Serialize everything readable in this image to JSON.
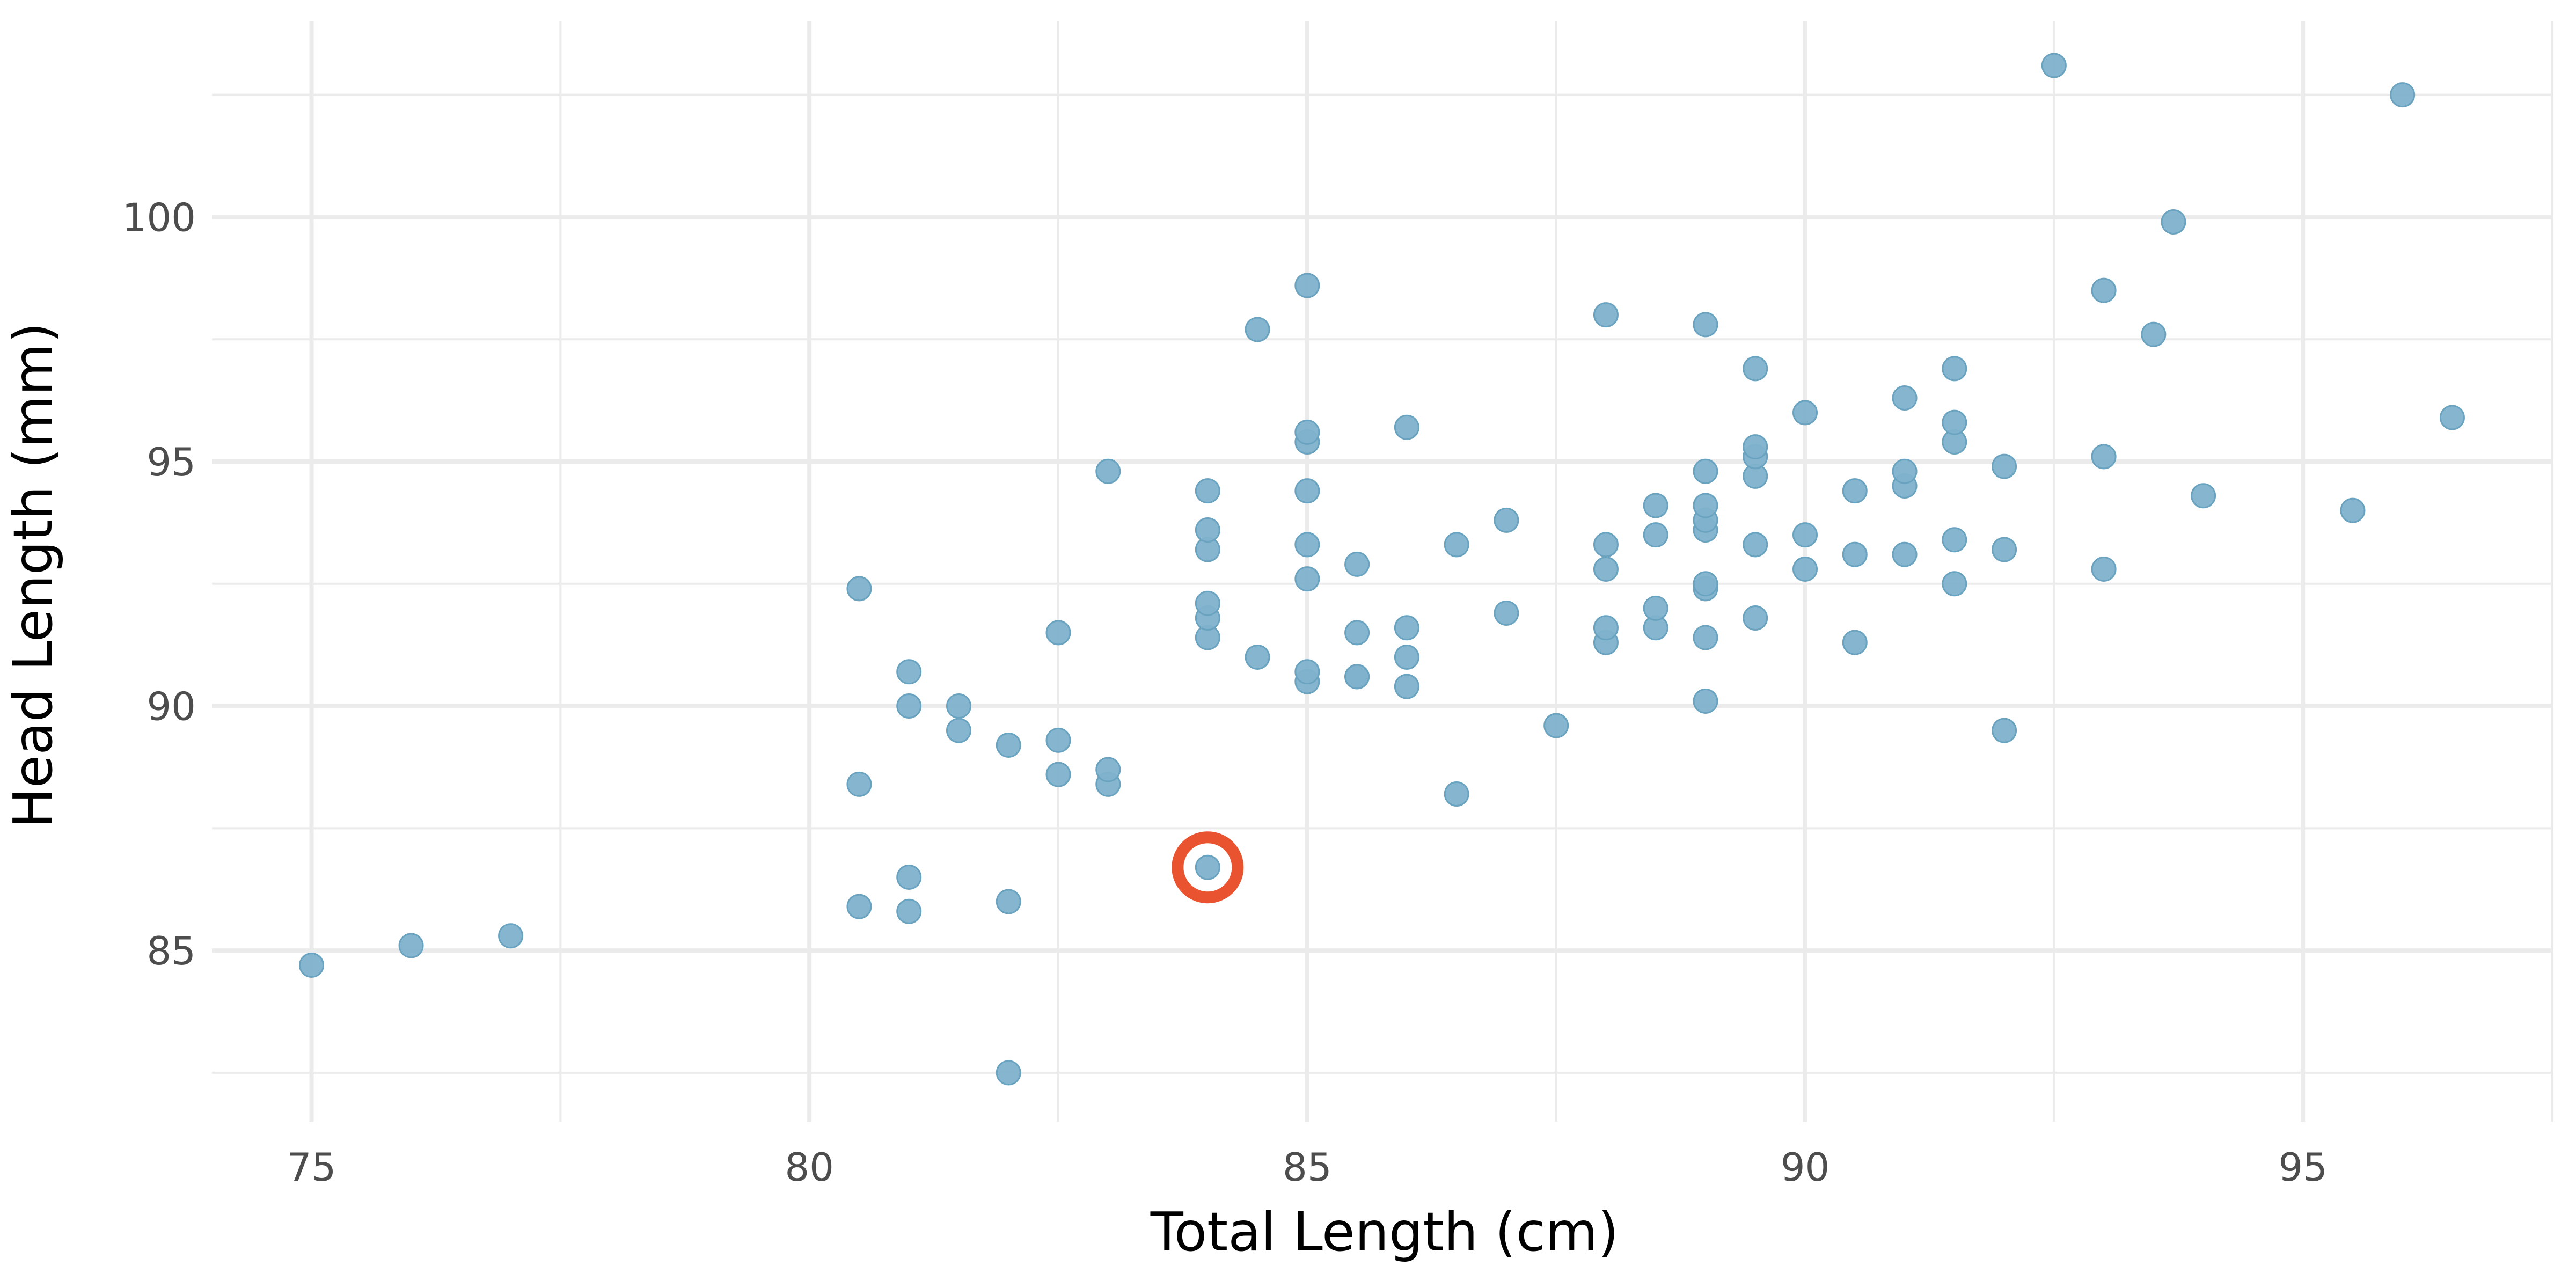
{
  "chart_data": {
    "type": "scatter",
    "title": "",
    "xlabel": "Total Length (cm)",
    "ylabel": "Head Length (mm)",
    "xlim": [
      74,
      97.5
    ],
    "ylim": [
      81.5,
      104
    ],
    "x_ticks": [
      75,
      80,
      85,
      90,
      95
    ],
    "y_ticks": [
      85,
      90,
      95,
      100
    ],
    "grid": true,
    "point_color": "#7fb2cc",
    "highlight_color": "#e9532f",
    "highlighted_point": {
      "x": 84.0,
      "y": 86.7
    },
    "points": [
      {
        "x": 75.0,
        "y": 84.7
      },
      {
        "x": 76.0,
        "y": 85.1
      },
      {
        "x": 77.0,
        "y": 85.3
      },
      {
        "x": 80.5,
        "y": 85.9
      },
      {
        "x": 80.5,
        "y": 88.4
      },
      {
        "x": 80.5,
        "y": 92.4
      },
      {
        "x": 81.0,
        "y": 85.8
      },
      {
        "x": 81.0,
        "y": 86.5
      },
      {
        "x": 81.0,
        "y": 90.0
      },
      {
        "x": 81.0,
        "y": 90.7
      },
      {
        "x": 81.5,
        "y": 89.5
      },
      {
        "x": 81.5,
        "y": 90.0
      },
      {
        "x": 82.0,
        "y": 82.5
      },
      {
        "x": 82.0,
        "y": 86.0
      },
      {
        "x": 82.0,
        "y": 89.2
      },
      {
        "x": 82.5,
        "y": 88.6
      },
      {
        "x": 82.5,
        "y": 89.3
      },
      {
        "x": 82.5,
        "y": 91.5
      },
      {
        "x": 83.0,
        "y": 88.4
      },
      {
        "x": 83.0,
        "y": 88.7
      },
      {
        "x": 83.0,
        "y": 94.8
      },
      {
        "x": 84.0,
        "y": 86.7
      },
      {
        "x": 84.0,
        "y": 91.4
      },
      {
        "x": 84.0,
        "y": 91.8
      },
      {
        "x": 84.0,
        "y": 92.1
      },
      {
        "x": 84.0,
        "y": 93.2
      },
      {
        "x": 84.0,
        "y": 93.6
      },
      {
        "x": 84.0,
        "y": 94.4
      },
      {
        "x": 84.5,
        "y": 91.0
      },
      {
        "x": 84.5,
        "y": 97.7
      },
      {
        "x": 85.0,
        "y": 90.5
      },
      {
        "x": 85.0,
        "y": 90.7
      },
      {
        "x": 85.0,
        "y": 92.6
      },
      {
        "x": 85.0,
        "y": 93.3
      },
      {
        "x": 85.0,
        "y": 94.4
      },
      {
        "x": 85.0,
        "y": 95.4
      },
      {
        "x": 85.0,
        "y": 95.6
      },
      {
        "x": 85.0,
        "y": 98.6
      },
      {
        "x": 85.5,
        "y": 90.6
      },
      {
        "x": 85.5,
        "y": 90.6
      },
      {
        "x": 85.5,
        "y": 91.5
      },
      {
        "x": 85.5,
        "y": 92.9
      },
      {
        "x": 86.0,
        "y": 90.4
      },
      {
        "x": 86.0,
        "y": 91.0
      },
      {
        "x": 86.0,
        "y": 91.6
      },
      {
        "x": 86.0,
        "y": 95.7
      },
      {
        "x": 86.5,
        "y": 88.2
      },
      {
        "x": 86.5,
        "y": 93.3
      },
      {
        "x": 87.0,
        "y": 91.9
      },
      {
        "x": 87.0,
        "y": 93.8
      },
      {
        "x": 87.5,
        "y": 89.6
      },
      {
        "x": 88.0,
        "y": 91.3
      },
      {
        "x": 88.0,
        "y": 91.6
      },
      {
        "x": 88.0,
        "y": 92.8
      },
      {
        "x": 88.0,
        "y": 93.3
      },
      {
        "x": 88.0,
        "y": 98.0
      },
      {
        "x": 88.5,
        "y": 91.6
      },
      {
        "x": 88.5,
        "y": 92.0
      },
      {
        "x": 88.5,
        "y": 93.5
      },
      {
        "x": 88.5,
        "y": 94.1
      },
      {
        "x": 89.0,
        "y": 90.1
      },
      {
        "x": 89.0,
        "y": 91.4
      },
      {
        "x": 89.0,
        "y": 92.4
      },
      {
        "x": 89.0,
        "y": 92.5
      },
      {
        "x": 89.0,
        "y": 93.6
      },
      {
        "x": 89.0,
        "y": 93.8
      },
      {
        "x": 89.0,
        "y": 94.1
      },
      {
        "x": 89.0,
        "y": 94.8
      },
      {
        "x": 89.0,
        "y": 97.8
      },
      {
        "x": 89.5,
        "y": 91.8
      },
      {
        "x": 89.5,
        "y": 93.3
      },
      {
        "x": 89.5,
        "y": 94.7
      },
      {
        "x": 89.5,
        "y": 95.1
      },
      {
        "x": 89.5,
        "y": 95.3
      },
      {
        "x": 89.5,
        "y": 96.9
      },
      {
        "x": 90.0,
        "y": 92.8
      },
      {
        "x": 90.0,
        "y": 93.5
      },
      {
        "x": 90.0,
        "y": 96.0
      },
      {
        "x": 90.5,
        "y": 91.3
      },
      {
        "x": 90.5,
        "y": 93.1
      },
      {
        "x": 90.5,
        "y": 94.4
      },
      {
        "x": 91.0,
        "y": 93.1
      },
      {
        "x": 91.0,
        "y": 94.5
      },
      {
        "x": 91.0,
        "y": 94.8
      },
      {
        "x": 91.0,
        "y": 96.3
      },
      {
        "x": 91.5,
        "y": 92.5
      },
      {
        "x": 91.5,
        "y": 93.4
      },
      {
        "x": 91.5,
        "y": 95.4
      },
      {
        "x": 91.5,
        "y": 95.8
      },
      {
        "x": 91.5,
        "y": 96.9
      },
      {
        "x": 92.0,
        "y": 89.5
      },
      {
        "x": 92.0,
        "y": 93.2
      },
      {
        "x": 92.0,
        "y": 94.9
      },
      {
        "x": 92.5,
        "y": 103.1
      },
      {
        "x": 93.0,
        "y": 92.8
      },
      {
        "x": 93.0,
        "y": 95.1
      },
      {
        "x": 93.0,
        "y": 98.5
      },
      {
        "x": 93.5,
        "y": 97.6
      },
      {
        "x": 93.7,
        "y": 99.9
      },
      {
        "x": 94.0,
        "y": 94.3
      },
      {
        "x": 95.5,
        "y": 94.0
      },
      {
        "x": 96.0,
        "y": 102.5
      },
      {
        "x": 96.5,
        "y": 95.9
      }
    ]
  }
}
